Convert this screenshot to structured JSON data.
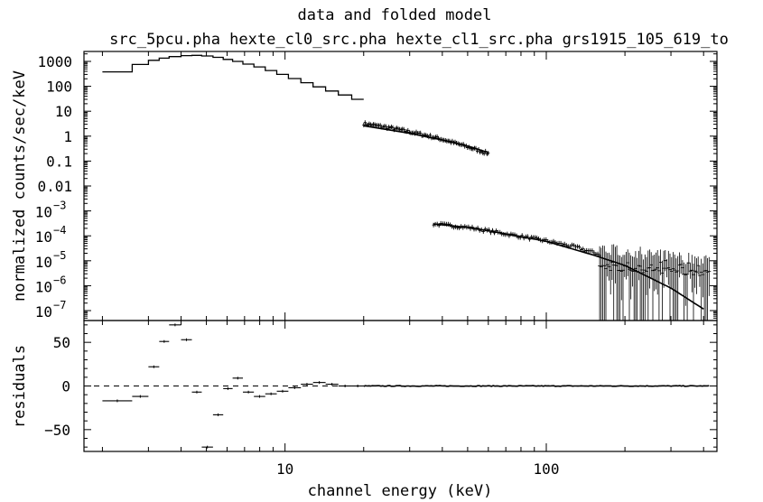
{
  "chart_data": [
    {
      "type": "line",
      "panel": "top",
      "title": "data and folded model",
      "subtitle": "src_5pcu.pha hexte_cl0_src.pha hexte_cl1_src.pha grs1915_105_619_to",
      "xlabel": "",
      "ylabel": "normalized counts/sec/keV",
      "xscale": "log",
      "yscale": "log",
      "xlim": [
        1.7,
        450
      ],
      "ylim": [
        4e-08,
        2500
      ],
      "grid": false,
      "yticks": [
        {
          "value": 1000,
          "label": "1000"
        },
        {
          "value": 100,
          "label": "100"
        },
        {
          "value": 10,
          "label": "10"
        },
        {
          "value": 1,
          "label": "1"
        },
        {
          "value": 0.1,
          "label": "0.1"
        },
        {
          "value": 0.01,
          "label": "0.01"
        },
        {
          "value": 0.001,
          "base": "10",
          "exp": "−3"
        },
        {
          "value": 0.0001,
          "base": "10",
          "exp": "−4"
        },
        {
          "value": 1e-05,
          "base": "10",
          "exp": "−5"
        },
        {
          "value": 1e-06,
          "base": "10",
          "exp": "−6"
        },
        {
          "value": 1e-07,
          "base": "10",
          "exp": "−7"
        }
      ],
      "series": [
        {
          "style": "step",
          "x": [
            2.0,
            2.6,
            3.0,
            3.3,
            3.6,
            4.0,
            4.4,
            4.8,
            5.3,
            5.8,
            6.3,
            6.9,
            7.6,
            8.4,
            9.3,
            10.3,
            11.5,
            12.8,
            14.3,
            16.0,
            18.0,
            20.0
          ],
          "y": [
            380,
            750,
            1100,
            1350,
            1550,
            1700,
            1750,
            1650,
            1450,
            1200,
            1000,
            780,
            600,
            430,
            300,
            205,
            140,
            95,
            65,
            45,
            30,
            22
          ]
        },
        {
          "style": "data-band",
          "x": [
            20,
            25,
            30,
            35,
            40,
            45,
            50,
            55,
            60
          ],
          "y": [
            3.2,
            2.2,
            1.5,
            1.05,
            0.75,
            0.52,
            0.37,
            0.27,
            0.2
          ]
        },
        {
          "style": "model-line",
          "x": [
            20,
            30,
            40,
            50,
            60
          ],
          "y": [
            2.6,
            1.3,
            0.7,
            0.4,
            0.22
          ]
        },
        {
          "style": "model-line",
          "x": [
            37,
            50,
            70,
            100,
            150,
            200,
            300,
            400
          ],
          "y": [
            0.0003,
            0.00022,
            0.00012,
            6e-05,
            1.75e-05,
            6.5e-06,
            8e-07,
            1.15e-07
          ]
        },
        {
          "style": "data-band",
          "x": [
            37,
            50,
            70,
            100,
            130,
            160
          ],
          "y": [
            0.0003,
            0.00022,
            0.00012,
            6.3e-05,
            3.5e-05,
            1.8e-05
          ]
        },
        {
          "style": "noisy-data",
          "x_range": [
            160,
            420
          ],
          "y_upper": [
            2.5e-05,
            8e-06
          ],
          "y_lower_floor": 4e-08
        }
      ]
    },
    {
      "type": "line",
      "panel": "bottom",
      "xlabel": "channel energy (keV)",
      "ylabel": "residuals",
      "xscale": "log",
      "xlim": [
        1.7,
        450
      ],
      "ylim": [
        -75,
        75
      ],
      "grid": false,
      "reference_line": 0,
      "xticks": [
        {
          "value": 10,
          "label": "10"
        },
        {
          "value": 100,
          "label": "100"
        }
      ],
      "yticks": [
        {
          "value": 50,
          "label": "50"
        },
        {
          "value": 0,
          "label": "0"
        },
        {
          "value": -50,
          "label": "−50"
        }
      ],
      "points": [
        {
          "x0": 2.0,
          "x1": 2.6,
          "y": -17
        },
        {
          "x0": 2.6,
          "x1": 3.0,
          "y": -12
        },
        {
          "x0": 3.0,
          "x1": 3.3,
          "y": 22
        },
        {
          "x0": 3.3,
          "x1": 3.6,
          "y": 51
        },
        {
          "x0": 3.6,
          "x1": 4.0,
          "y": 70
        },
        {
          "x0": 4.0,
          "x1": 4.4,
          "y": 53
        },
        {
          "x0": 4.4,
          "x1": 4.8,
          "y": -7
        },
        {
          "x0": 4.8,
          "x1": 5.3,
          "y": -70
        },
        {
          "x0": 5.3,
          "x1": 5.8,
          "y": -33
        },
        {
          "x0": 5.8,
          "x1": 6.3,
          "y": -3
        },
        {
          "x0": 6.3,
          "x1": 6.9,
          "y": 9
        },
        {
          "x0": 6.9,
          "x1": 7.6,
          "y": -7
        },
        {
          "x0": 7.6,
          "x1": 8.4,
          "y": -12
        },
        {
          "x0": 8.4,
          "x1": 9.3,
          "y": -9
        },
        {
          "x0": 9.3,
          "x1": 10.3,
          "y": -6
        },
        {
          "x0": 10.3,
          "x1": 11.5,
          "y": -2
        },
        {
          "x0": 11.5,
          "x1": 12.8,
          "y": 2
        },
        {
          "x0": 12.8,
          "x1": 14.3,
          "y": 4
        },
        {
          "x0": 14.3,
          "x1": 16.0,
          "y": 2
        },
        {
          "x0": 16.0,
          "x1": 18.0,
          "y": 0
        },
        {
          "x0": 18.0,
          "x1": 20.0,
          "y": 0
        }
      ]
    }
  ]
}
